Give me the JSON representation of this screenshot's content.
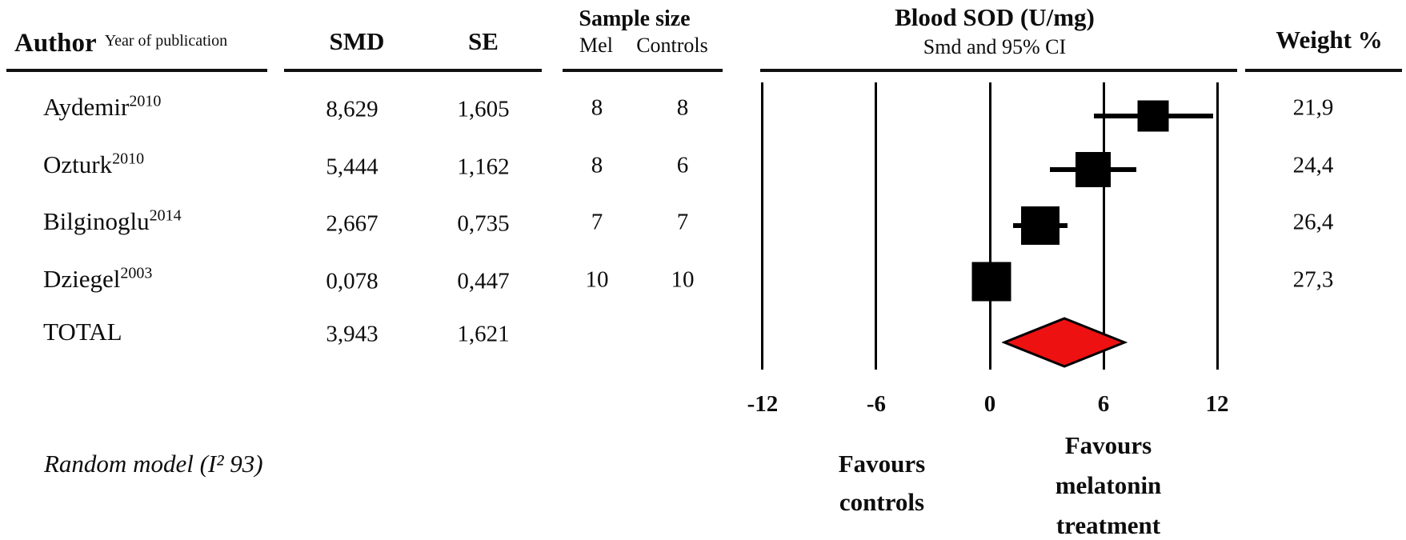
{
  "header": {
    "author_label": "Author",
    "author_sub": "Year of publication",
    "smd": "SMD",
    "se": "SE",
    "sample_size": "Sample size",
    "mel": "Mel",
    "controls": "Controls",
    "plot_title": "Blood SOD (U/mg)",
    "plot_subtitle": "Smd and 95% CI",
    "weight": "Weight %"
  },
  "table": {
    "rows": [
      {
        "author": "Aydemir",
        "year": "2010",
        "smd": "8,629",
        "se": "1,605",
        "mel": "8",
        "controls": "8",
        "weight": "21,9"
      },
      {
        "author": "Ozturk",
        "year": "2010",
        "smd": "5,444",
        "se": "1,162",
        "mel": "8",
        "controls": "6",
        "weight": "24,4"
      },
      {
        "author": "Bilginoglu",
        "year": "2014",
        "smd": "2,667",
        "se": "0,735",
        "mel": "7",
        "controls": "7",
        "weight": "26,4"
      },
      {
        "author": "Dziegel",
        "year": "2003",
        "smd": "0,078",
        "se": "0,447",
        "mel": "10",
        "controls": "10",
        "weight": "27,3"
      }
    ],
    "total": {
      "label": "TOTAL",
      "smd": "3,943",
      "se": "1,621"
    }
  },
  "footnote": "Random model (I² 93)",
  "chart_data": {
    "type": "forest",
    "title": "Blood SOD (U/mg)",
    "subtitle": "Smd and 95% CI",
    "x_ticks": [
      -12,
      -6,
      0,
      6,
      12
    ],
    "xlim": [
      -12,
      12
    ],
    "grid": "vertical-lines-at-ticks",
    "studies": [
      {
        "name": "Aydemir",
        "year": "2010",
        "smd": 8.629,
        "se": 1.605,
        "ci95": [
          5.48,
          11.78
        ],
        "weight_pct": 21.9,
        "n_mel": 8,
        "n_controls": 8
      },
      {
        "name": "Ozturk",
        "year": "2010",
        "smd": 5.444,
        "se": 1.162,
        "ci95": [
          3.17,
          7.72
        ],
        "weight_pct": 24.4,
        "n_mel": 8,
        "n_controls": 6
      },
      {
        "name": "Bilginoglu",
        "year": "2014",
        "smd": 2.667,
        "se": 0.735,
        "ci95": [
          1.23,
          4.11
        ],
        "weight_pct": 26.4,
        "n_mel": 7,
        "n_controls": 7
      },
      {
        "name": "Dziegel",
        "year": "2003",
        "smd": 0.078,
        "se": 0.447,
        "ci95": [
          -0.8,
          0.95
        ],
        "weight_pct": 27.3,
        "n_mel": 10,
        "n_controls": 10
      }
    ],
    "total": {
      "label": "TOTAL",
      "smd": 3.943,
      "se": 1.621,
      "ci95": [
        0.77,
        7.12
      ],
      "marker": "diamond",
      "color": "#ee1111"
    },
    "favours_left_lines": [
      "Favours",
      "controls"
    ],
    "favours_right_lines": [
      "Favours",
      "melatonin",
      "treatment"
    ],
    "model_note": "Random model (I² 93)",
    "marker_color": "#000000",
    "diamond_color": "#ee1111"
  }
}
